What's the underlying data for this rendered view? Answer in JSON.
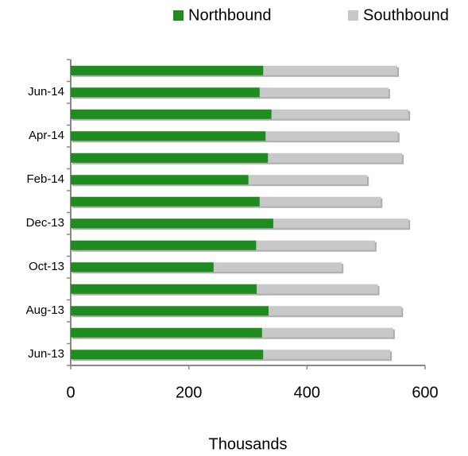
{
  "chart_data": {
    "type": "stacked-bar-horizontal",
    "x_label": "Thousands",
    "categories": [
      "Jun-13",
      null,
      "Aug-13",
      null,
      "Oct-13",
      null,
      "Dec-13",
      null,
      "Feb-14",
      null,
      "Apr-14",
      null,
      "Jun-14",
      null
    ],
    "series": [
      {
        "name": "Northbound",
        "color": "#1e8c1e",
        "values": [
          326,
          324,
          335,
          315,
          242,
          314,
          343,
          320,
          301,
          334,
          330,
          340,
          320,
          326
        ]
      },
      {
        "name": "Southbound",
        "color": "#c8c8c8",
        "values": [
          215,
          222,
          225,
          205,
          217,
          201,
          229,
          205,
          201,
          227,
          224,
          232,
          218,
          227
        ]
      }
    ],
    "xlim": [
      0,
      600
    ],
    "xticks": [
      0,
      200,
      400,
      600
    ],
    "legend": "top-right"
  }
}
